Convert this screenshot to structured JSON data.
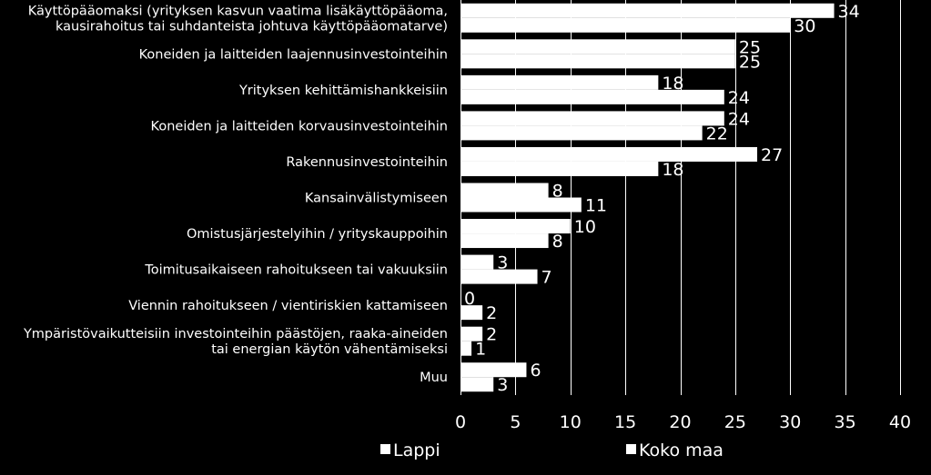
{
  "chart_data": {
    "type": "bar",
    "orientation": "horizontal",
    "categories": [
      [
        "Käyttöpääomaksi (yrityksen kasvun vaatima lisäkäyttöpääoma,",
        "kausirahoitus tai suhdanteista johtuva käyttöpääomatarve)"
      ],
      [
        "Koneiden ja laitteiden laajennusinvestointeihin"
      ],
      [
        "Yrityksen kehittämishankkeisiin"
      ],
      [
        "Koneiden ja laitteiden korvausinvestointeihin"
      ],
      [
        "Rakennusinvestointeihin"
      ],
      [
        "Kansainvälistymiseen"
      ],
      [
        "Omistusjärjestelyihin / yrityskauppoihin"
      ],
      [
        "Toimitusaikaiseen rahoitukseen tai vakuuksiin"
      ],
      [
        "Viennin rahoitukseen / vientiriskien kattamiseen"
      ],
      [
        "Ympäristövaikutteisiin investointeihin päästöjen, raaka-aineiden",
        "tai energian käytön vähentämiseksi"
      ],
      [
        "Muu"
      ]
    ],
    "series": [
      {
        "name": "Lappi",
        "values": [
          34,
          25,
          18,
          24,
          27,
          8,
          10,
          3,
          0,
          2,
          6
        ]
      },
      {
        "name": "Koko maa",
        "values": [
          30,
          25,
          24,
          22,
          18,
          11,
          8,
          7,
          2,
          1,
          3
        ]
      }
    ],
    "xlim": [
      0,
      40
    ],
    "xticks": [
      "0",
      "5",
      "10",
      "15",
      "20",
      "25",
      "30",
      "35",
      "40"
    ],
    "grid": true,
    "legend_position": "bottom",
    "colors": {
      "background": "#000000",
      "bars": "#ffffff",
      "text": "#ffffff",
      "grid": "#ffffff"
    }
  }
}
